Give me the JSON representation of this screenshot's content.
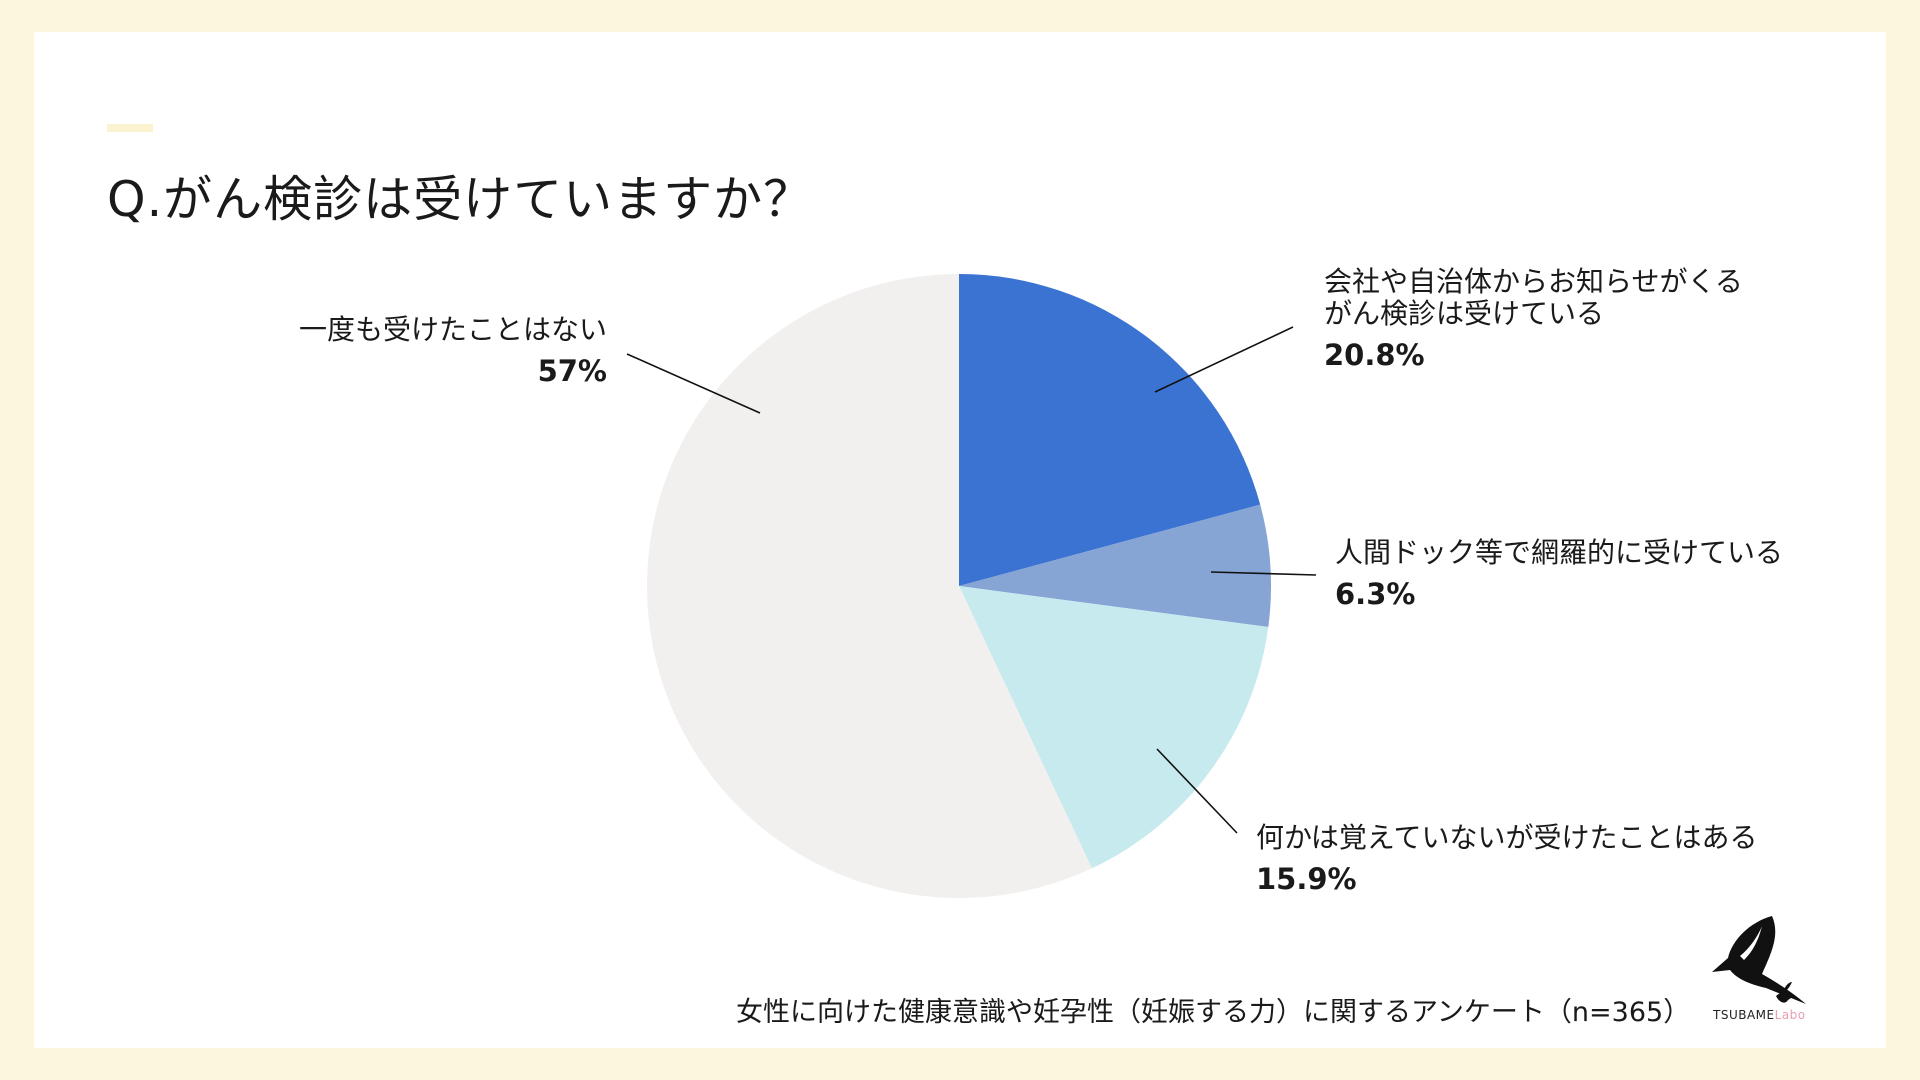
{
  "colors": {
    "background": "#fbf6dc",
    "card": "#ffffff",
    "accent": "#fbf3cf"
  },
  "header": {
    "title": "Q.がん検診は受けていますか？"
  },
  "chart_data": {
    "type": "pie",
    "start": "12 o'clock",
    "direction": "clockwise",
    "slices": [
      {
        "label_lines": [
          "会社や自治体からお知らせがくる",
          "がん検診は受けている"
        ],
        "percent_label": "20.8%",
        "value": 20.8,
        "color": "#3b73d2"
      },
      {
        "label_lines": [
          "人間ドック等で網羅的に受けている"
        ],
        "percent_label": "6.3%",
        "value": 6.3,
        "color": "#86a4d4"
      },
      {
        "label_lines": [
          "何かは覚えていないが受けたことはある"
        ],
        "percent_label": "15.9%",
        "value": 15.9,
        "color": "#c7eaee"
      },
      {
        "label_lines": [
          "一度も受けたことはない"
        ],
        "percent_label": "57%",
        "value": 57,
        "color": "#f2f0ef"
      }
    ]
  },
  "footer": {
    "note": "女性に向けた健康意識や妊孕性（妊娠する力）に関するアンケート（n=365）"
  },
  "logo": {
    "brand": "TSUBAME",
    "suffix": "Labo"
  }
}
